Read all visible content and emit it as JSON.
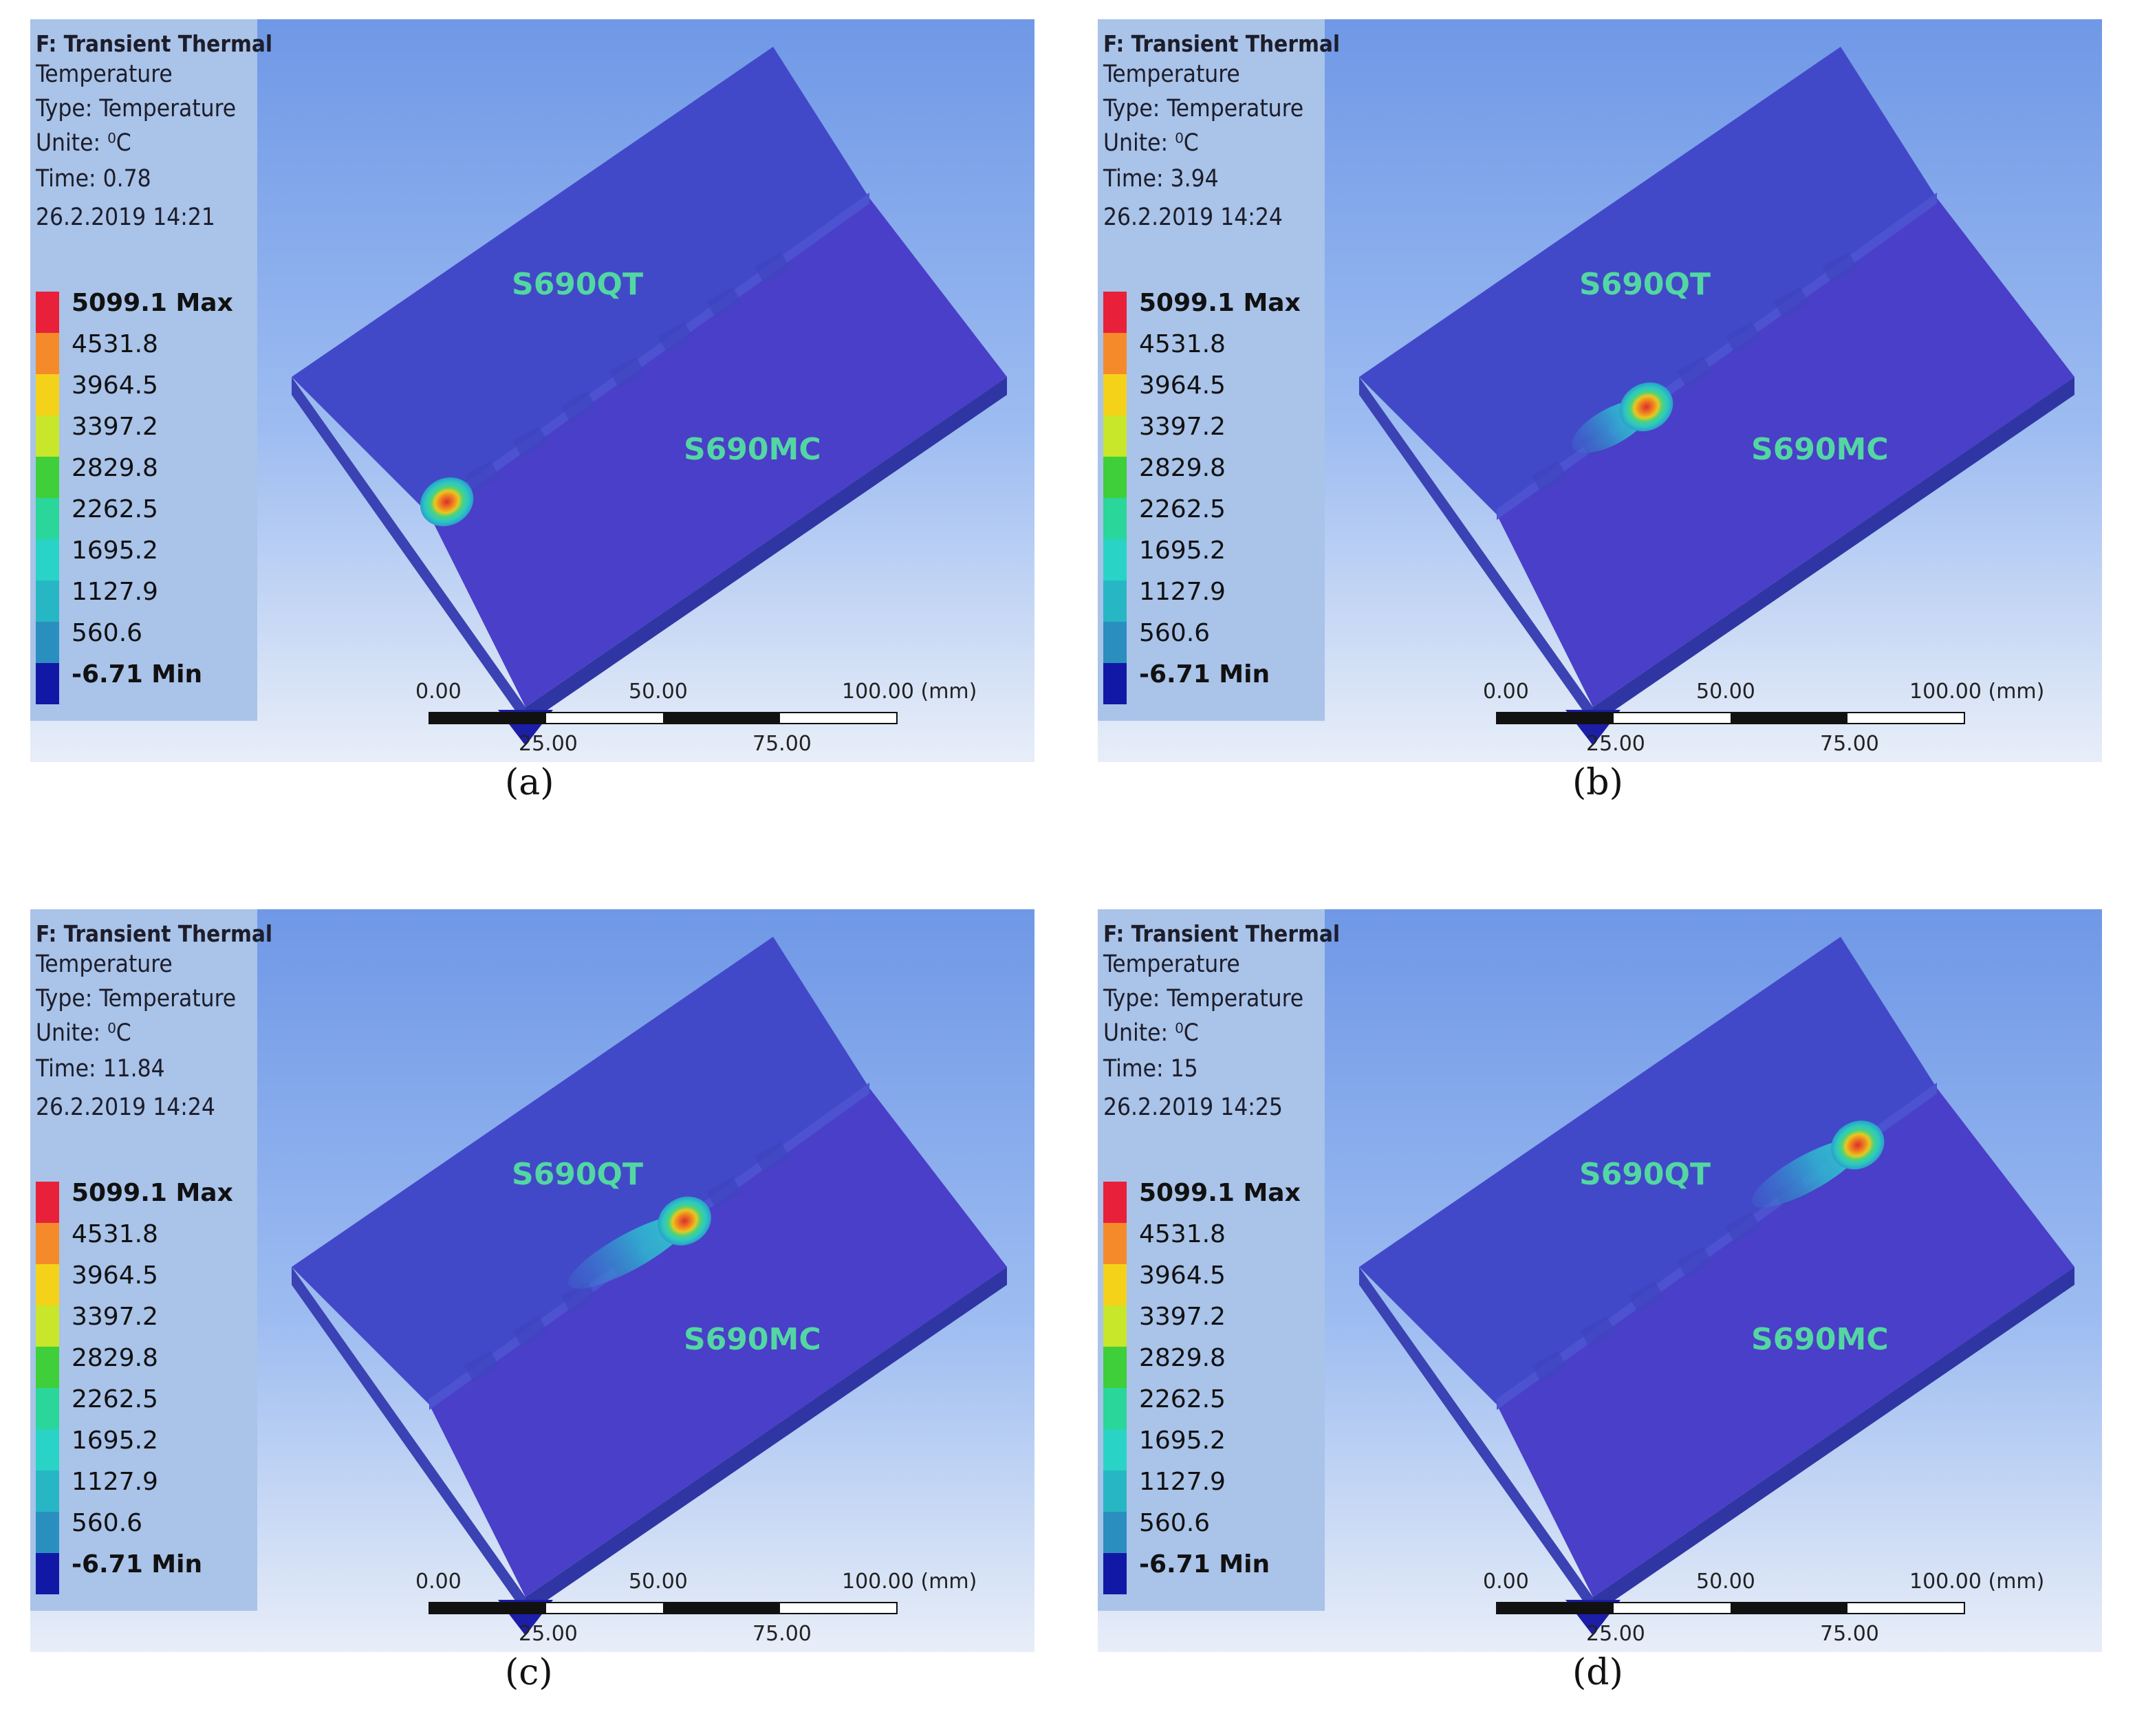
{
  "panels": [
    {
      "caption": "(a)",
      "title": "F: Transient Thermal",
      "result": "Temperature",
      "type": "Type: Temperature",
      "unit": "Unite: ⁰C",
      "time": "Time: 0.78",
      "date": "26.2.2019 14:21",
      "label_top": "S690QT",
      "label_bottom": "S690MC"
    },
    {
      "caption": "(b)",
      "title": "F: Transient Thermal",
      "result": "Temperature",
      "type": "Type: Temperature",
      "unit": "Unite: ⁰C",
      "time": "Time: 3.94",
      "date": "26.2.2019 14:24",
      "label_top": "S690QT",
      "label_bottom": "S690MC"
    },
    {
      "caption": "(c)",
      "title": "F: Transient Thermal",
      "result": "Temperature",
      "type": "Type: Temperature",
      "unit": "Unite: ⁰C",
      "time": "Time: 11.84",
      "date": "26.2.2019 14:24",
      "label_top": "S690QT",
      "label_bottom": "S690MC"
    },
    {
      "caption": "(d)",
      "title": "F: Transient Thermal",
      "result": "Temperature",
      "type": "Type: Temperature",
      "unit": "Unite: ⁰C",
      "time": "Time: 15",
      "date": "26.2.2019 14:25",
      "label_top": "S690QT",
      "label_bottom": "S690MC"
    }
  ],
  "legend": {
    "labels": [
      "5099.1 Max",
      "4531.8",
      "3964.5",
      "3397.2",
      "2829.8",
      "2262.5",
      "1695.2",
      "1127.9",
      "560.6",
      "-6.71 Min"
    ],
    "colors": [
      "#e8203a",
      "#f58a2a",
      "#f5d21a",
      "#c8e62a",
      "#3fcf3a",
      "#2ad69a",
      "#29d4c6",
      "#27b7c4",
      "#2a8fbf",
      "#1218a6"
    ]
  },
  "scale": {
    "ticks_top": [
      "0.00",
      "50.00",
      "100.00 (mm)"
    ],
    "ticks_bottom": [
      "25.00",
      "75.00"
    ]
  }
}
